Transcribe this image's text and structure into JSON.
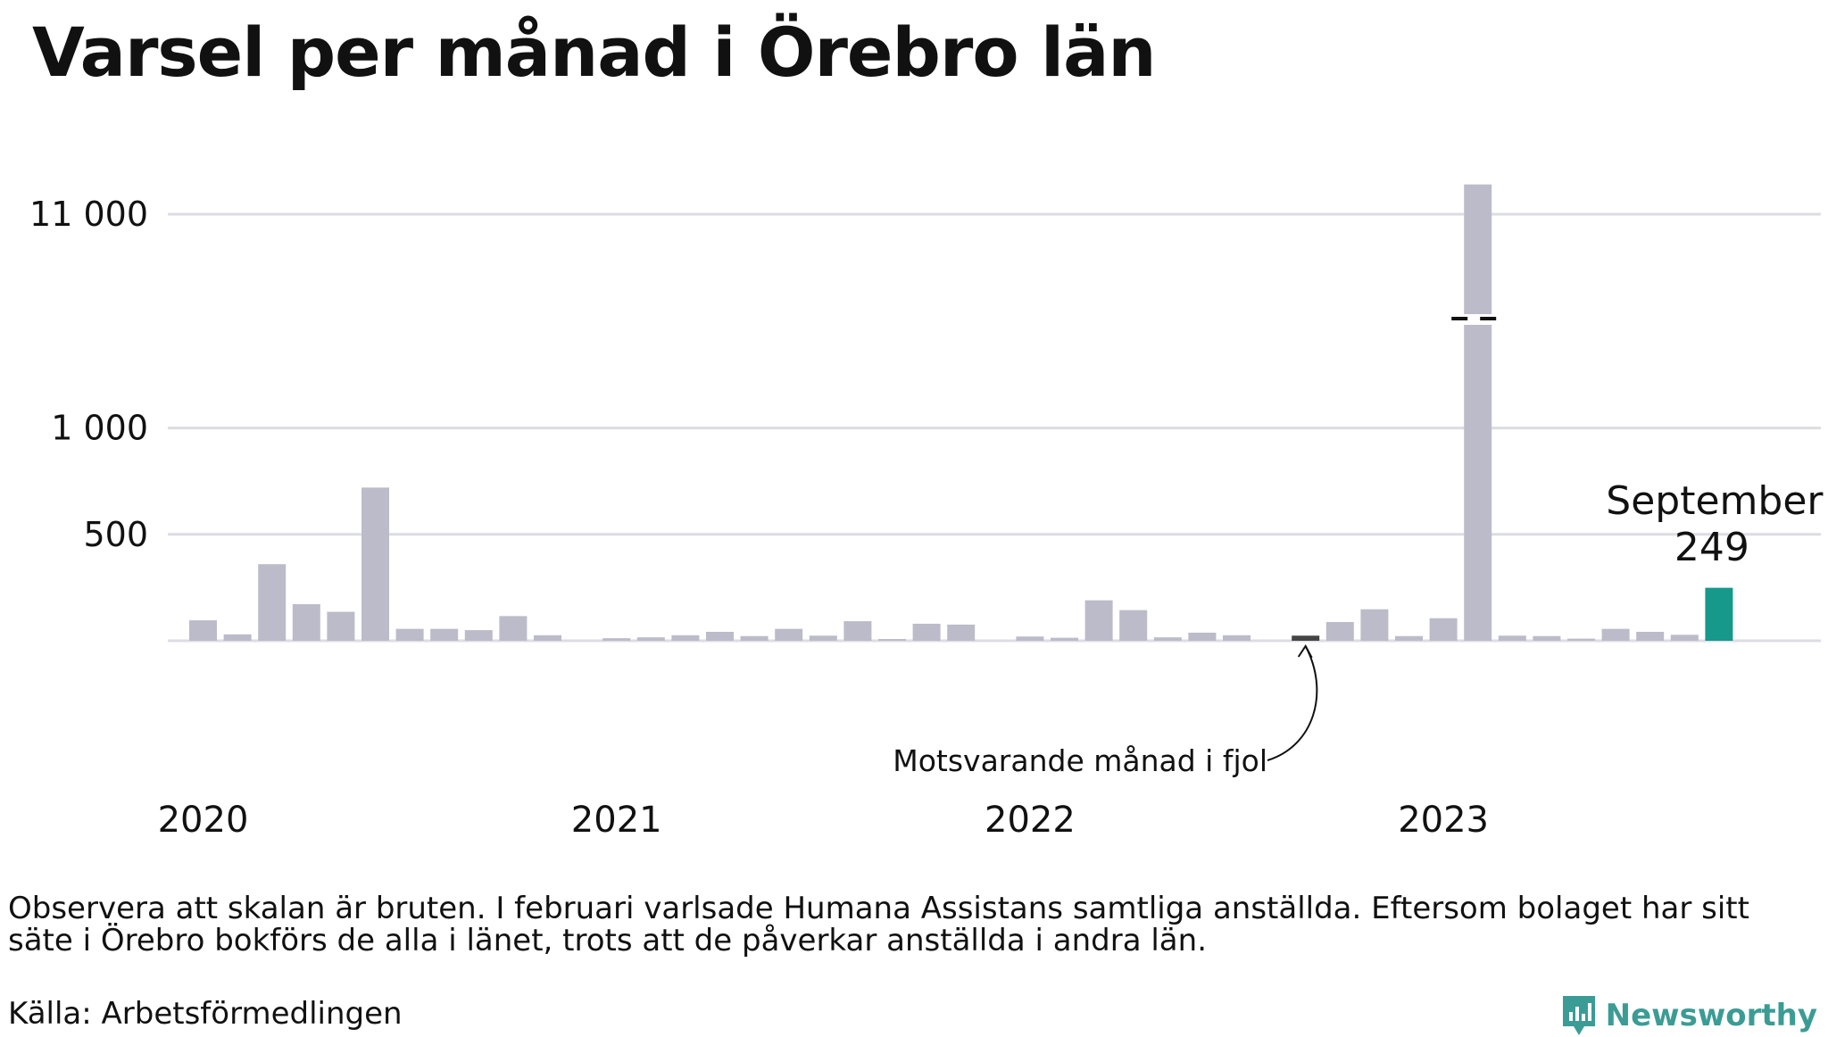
{
  "title": "Varsel per månad i Örebro län",
  "note": "Observera att skalan är bruten. I februari varlsade Humana Assistans samtliga anställda. Eftersom bolaget har sitt säte i Örebro bokförs de alla i länet, trots att de påverkar anställda i andra län.",
  "source": "Källa: Arbetsförmedlingen",
  "brand": {
    "name": "Newsworthy",
    "icon": "newsworthy-logo-icon"
  },
  "colors": {
    "bar": "#bcbbc9",
    "highlight": "#16988b",
    "comparison": "#444444",
    "grid": "#dcdce3",
    "brand": "#3b9c95"
  },
  "chart_data": {
    "type": "bar",
    "broken_scale": true,
    "y_ticks": [
      {
        "value": 500,
        "label": "500"
      },
      {
        "value": 1000,
        "label": "1 000"
      },
      {
        "value": 11000,
        "label": "11 000"
      }
    ],
    "year_labels": [
      "2020",
      "2021",
      "2022",
      "2023"
    ],
    "months": [
      "2020-01",
      "2020-02",
      "2020-03",
      "2020-04",
      "2020-05",
      "2020-06",
      "2020-07",
      "2020-08",
      "2020-09",
      "2020-10",
      "2020-11",
      "2020-12",
      "2021-01",
      "2021-02",
      "2021-03",
      "2021-04",
      "2021-05",
      "2021-06",
      "2021-07",
      "2021-08",
      "2021-09",
      "2021-10",
      "2021-11",
      "2021-12",
      "2022-01",
      "2022-02",
      "2022-03",
      "2022-04",
      "2022-05",
      "2022-06",
      "2022-07",
      "2022-08",
      "2022-09",
      "2022-10",
      "2022-11",
      "2022-12",
      "2023-01",
      "2023-02",
      "2023-03",
      "2023-04",
      "2023-05",
      "2023-06",
      "2023-07",
      "2023-08",
      "2023-09"
    ],
    "values": [
      96,
      30,
      360,
      172,
      136,
      720,
      56,
      56,
      50,
      116,
      26,
      0,
      12,
      16,
      26,
      42,
      22,
      56,
      24,
      92,
      4,
      80,
      76,
      0,
      20,
      14,
      190,
      144,
      16,
      38,
      26,
      0,
      24,
      88,
      148,
      22,
      106,
      12400,
      24,
      22,
      10,
      56,
      42,
      28,
      249
    ],
    "comparison_month": "2022-09",
    "comparison_label": "Motsvarande månad i fjol",
    "highlight": {
      "month_label": "September",
      "value_label": "249"
    },
    "ylim": [
      0,
      12400
    ],
    "grid": true
  }
}
